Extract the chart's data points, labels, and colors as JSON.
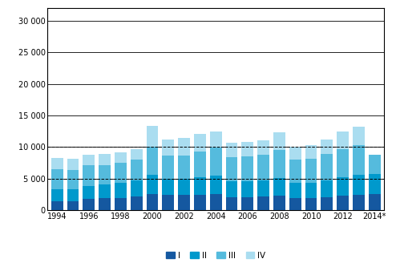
{
  "years": [
    1994,
    1995,
    1996,
    1997,
    1998,
    1999,
    2000,
    2001,
    2002,
    2003,
    2004,
    2005,
    2006,
    2007,
    2008,
    2009,
    2010,
    2011,
    2012,
    2013,
    2014
  ],
  "Q1": [
    1500,
    1500,
    1800,
    1900,
    2000,
    2200,
    2600,
    2400,
    2400,
    2500,
    2600,
    2100,
    2100,
    2200,
    2300,
    2000,
    1900,
    2100,
    2300,
    2500,
    2600
  ],
  "Q2": [
    1800,
    1800,
    2100,
    2200,
    2300,
    2600,
    3000,
    2600,
    2600,
    2800,
    2900,
    2500,
    2500,
    2600,
    2800,
    2300,
    2400,
    2600,
    3000,
    3100,
    3200
  ],
  "Q3": [
    3200,
    3100,
    3200,
    3100,
    3200,
    3200,
    4500,
    3700,
    3700,
    4000,
    4400,
    3800,
    3900,
    4000,
    4400,
    3700,
    3900,
    4200,
    4400,
    4700,
    3000
  ],
  "Q4": [
    1800,
    1800,
    1700,
    1700,
    1700,
    1700,
    3300,
    2500,
    2700,
    2800,
    2600,
    2300,
    2300,
    2300,
    2900,
    2100,
    2100,
    2300,
    2800,
    2900,
    0
  ],
  "colors": [
    "#1558a0",
    "#0099cc",
    "#55bbdd",
    "#aaddf0"
  ],
  "legend_labels": [
    "I",
    "II",
    "III",
    "IV"
  ],
  "ylim": [
    0,
    32000
  ],
  "yticks": [
    0,
    5000,
    10000,
    15000,
    20000,
    25000,
    30000
  ],
  "ytick_labels": [
    "0",
    "5 000",
    "10 000",
    "15 000",
    "20 000",
    "25 000",
    "30 000"
  ],
  "hlines": [
    5000,
    10000
  ],
  "solid_hlines": [
    0,
    5000,
    10000,
    15000,
    20000,
    25000,
    30000
  ],
  "background_color": "#ffffff",
  "bar_width": 0.75,
  "edge_color": "none"
}
